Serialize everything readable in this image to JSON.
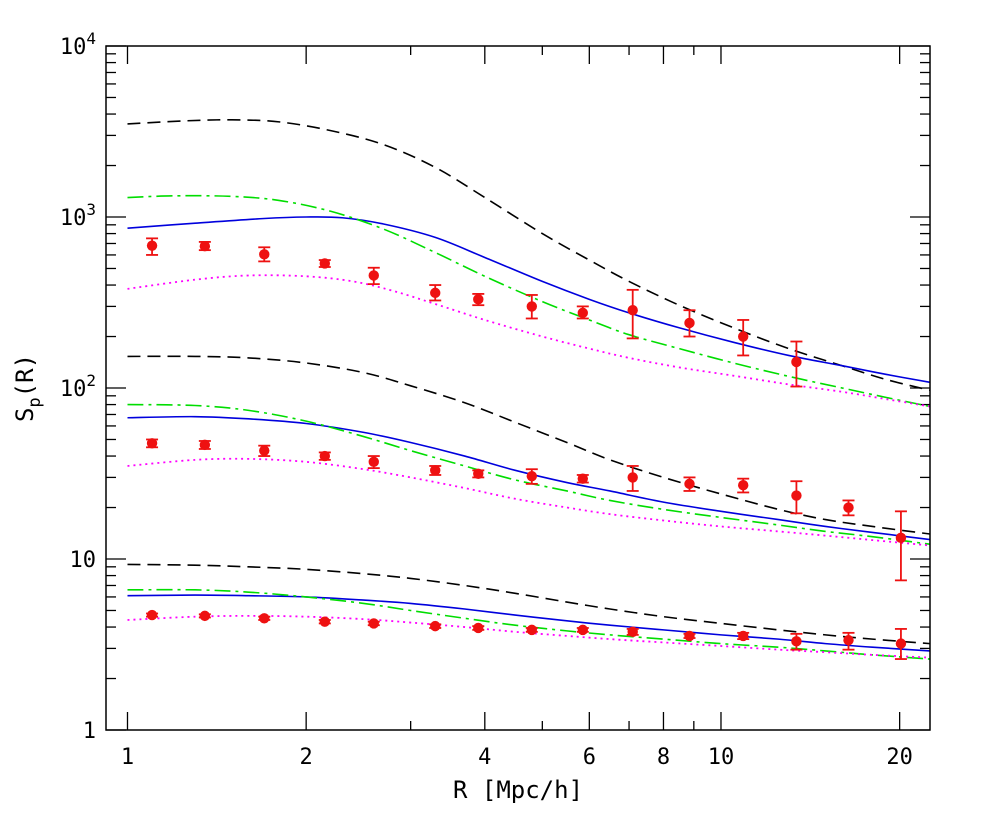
{
  "chart_data": {
    "type": "scatter",
    "xlabel": "R [Mpc/h]",
    "ylabel": "S",
    "ylabel_sub": "p",
    "ylabel_suffix": "(R)",
    "xscale": "log",
    "yscale": "log",
    "xlim": [
      0.92,
      22.5
    ],
    "ylim": [
      1,
      10000
    ],
    "x_ticks": [
      {
        "value": 1,
        "label": "1"
      },
      {
        "value": 2,
        "label": "2"
      },
      {
        "value": 4,
        "label": "4"
      },
      {
        "value": 6,
        "label": "6"
      },
      {
        "value": 8,
        "label": "8"
      },
      {
        "value": 10,
        "label": "10"
      },
      {
        "value": 20,
        "label": "20"
      }
    ],
    "y_ticks": [
      {
        "value": 1,
        "label": "1"
      },
      {
        "value": 10,
        "label": "10"
      },
      {
        "value": 100,
        "label": "10",
        "sup": "2"
      },
      {
        "value": 1000,
        "label": "10",
        "sup": "3"
      },
      {
        "value": 10000,
        "label": "10",
        "sup": "4"
      }
    ],
    "colors": {
      "points": "#ee1111",
      "dashed": "#000000",
      "solid": "#0000dd",
      "dashdot": "#00dd00",
      "dotted": "#ff00ff"
    },
    "model_curves": [
      {
        "group": "upper",
        "style": "dashed",
        "color": "#000000",
        "x": [
          1.0,
          1.25,
          1.5,
          1.8,
          2.2,
          2.7,
          3.3,
          4.0,
          5.0,
          6.0,
          7.0,
          8.5,
          10.5,
          13.0,
          16.0,
          19.0,
          22.5
        ],
        "y": [
          3500,
          3650,
          3700,
          3600,
          3200,
          2650,
          1950,
          1300,
          800,
          560,
          420,
          305,
          225,
          170,
          135,
          112,
          97
        ]
      },
      {
        "group": "upper",
        "style": "solid",
        "color": "#0000dd",
        "x": [
          1.0,
          1.3,
          1.7,
          2.0,
          2.3,
          2.7,
          3.3,
          4.0,
          5.0,
          6.0,
          7.0,
          8.5,
          10.5,
          13.0,
          16.0,
          19.0,
          22.5
        ],
        "y": [
          860,
          920,
          980,
          1000,
          990,
          910,
          760,
          580,
          420,
          330,
          275,
          225,
          185,
          155,
          135,
          120,
          108
        ]
      },
      {
        "group": "upper",
        "style": "dashdot",
        "color": "#00dd00",
        "x": [
          1.0,
          1.2,
          1.5,
          1.8,
          2.2,
          2.7,
          3.3,
          4.0,
          5.0,
          6.0,
          7.0,
          8.5,
          10.5,
          13.0,
          16.0,
          19.0,
          22.5
        ],
        "y": [
          1300,
          1330,
          1320,
          1250,
          1080,
          850,
          620,
          450,
          320,
          250,
          205,
          170,
          140,
          117,
          100,
          88,
          78
        ]
      },
      {
        "group": "upper",
        "style": "dotted",
        "color": "#ff00ff",
        "x": [
          1.0,
          1.3,
          1.6,
          2.0,
          2.4,
          2.8,
          3.3,
          4.0,
          5.0,
          6.0,
          7.0,
          8.5,
          10.5,
          13.0,
          16.0,
          19.0,
          22.5
        ],
        "y": [
          380,
          430,
          455,
          450,
          420,
          370,
          310,
          250,
          200,
          170,
          150,
          132,
          118,
          105,
          95,
          86,
          78
        ]
      },
      {
        "group": "middle",
        "style": "dashed",
        "color": "#000000",
        "x": [
          1.0,
          1.3,
          1.6,
          2.0,
          2.5,
          3.0,
          3.7,
          4.5,
          5.5,
          6.5,
          8.0,
          10.0,
          12.5,
          15.0,
          18.0,
          22.5
        ],
        "y": [
          153,
          153,
          150,
          140,
          123,
          103,
          82,
          63,
          48,
          38,
          30,
          24,
          19.5,
          17,
          15.5,
          14
        ]
      },
      {
        "group": "middle",
        "style": "solid",
        "color": "#0000dd",
        "x": [
          1.0,
          1.3,
          1.6,
          2.0,
          2.5,
          3.0,
          3.7,
          4.5,
          5.5,
          6.5,
          8.0,
          10.0,
          12.5,
          15.0,
          18.0,
          22.5
        ],
        "y": [
          67,
          68,
          66,
          62,
          55,
          48,
          40,
          33,
          28,
          25,
          21.5,
          19,
          17,
          15.5,
          14.3,
          13
        ]
      },
      {
        "group": "middle",
        "style": "dashdot",
        "color": "#00dd00",
        "x": [
          1.0,
          1.3,
          1.6,
          2.0,
          2.5,
          3.0,
          3.7,
          4.5,
          5.5,
          6.5,
          8.0,
          10.0,
          12.5,
          15.0,
          18.0,
          22.5
        ],
        "y": [
          80,
          79,
          74,
          64,
          52,
          43,
          35,
          29,
          25,
          22,
          19.5,
          17.5,
          15.8,
          14.5,
          13.5,
          12.2
        ]
      },
      {
        "group": "middle",
        "style": "dotted",
        "color": "#ff00ff",
        "x": [
          1.0,
          1.3,
          1.6,
          2.0,
          2.5,
          3.0,
          3.7,
          4.5,
          5.5,
          6.5,
          8.0,
          10.0,
          12.5,
          15.0,
          18.0,
          22.5
        ],
        "y": [
          35,
          38,
          38.5,
          37,
          33.5,
          30,
          26,
          22.5,
          20,
          18.3,
          16.8,
          15.5,
          14.5,
          13.7,
          12.9,
          12
        ]
      },
      {
        "group": "lower",
        "style": "dashed",
        "color": "#000000",
        "x": [
          1.0,
          1.3,
          1.6,
          2.0,
          2.5,
          3.0,
          3.7,
          4.5,
          5.5,
          6.5,
          8.0,
          10.0,
          12.5,
          15.0,
          18.0,
          22.5
        ],
        "y": [
          9.3,
          9.2,
          9.0,
          8.7,
          8.2,
          7.7,
          7.0,
          6.3,
          5.6,
          5.1,
          4.6,
          4.2,
          3.85,
          3.6,
          3.4,
          3.2
        ]
      },
      {
        "group": "lower",
        "style": "solid",
        "color": "#0000dd",
        "x": [
          1.0,
          1.3,
          1.6,
          2.0,
          2.5,
          3.0,
          3.7,
          4.5,
          5.5,
          6.5,
          8.0,
          10.0,
          12.5,
          15.0,
          18.0,
          22.5
        ],
        "y": [
          6.1,
          6.15,
          6.1,
          6.0,
          5.75,
          5.5,
          5.1,
          4.7,
          4.35,
          4.1,
          3.85,
          3.6,
          3.4,
          3.2,
          3.05,
          2.9
        ]
      },
      {
        "group": "lower",
        "style": "dashdot",
        "color": "#00dd00",
        "x": [
          1.0,
          1.3,
          1.6,
          2.0,
          2.5,
          3.0,
          3.7,
          4.5,
          5.5,
          6.5,
          8.0,
          10.0,
          12.5,
          15.0,
          18.0,
          22.5
        ],
        "y": [
          6.6,
          6.6,
          6.4,
          6.0,
          5.5,
          5.0,
          4.5,
          4.1,
          3.8,
          3.6,
          3.4,
          3.2,
          3.05,
          2.9,
          2.75,
          2.6
        ]
      },
      {
        "group": "lower",
        "style": "dotted",
        "color": "#ff00ff",
        "x": [
          1.0,
          1.3,
          1.6,
          2.0,
          2.5,
          3.0,
          3.7,
          4.5,
          5.5,
          6.5,
          8.0,
          10.0,
          12.5,
          15.0,
          18.0,
          22.5
        ],
        "y": [
          4.4,
          4.6,
          4.65,
          4.6,
          4.45,
          4.25,
          4.0,
          3.75,
          3.55,
          3.4,
          3.25,
          3.1,
          2.95,
          2.85,
          2.75,
          2.65
        ]
      }
    ],
    "data_points": [
      {
        "group": "upper",
        "x": [
          1.1,
          1.35,
          1.7,
          2.15,
          2.6,
          3.3,
          3.9,
          4.8,
          5.85,
          7.1,
          8.85,
          10.9,
          13.4
        ],
        "y": [
          680,
          675,
          605,
          535,
          455,
          360,
          330,
          300,
          275,
          285,
          240,
          200,
          142
        ],
        "err_low": [
          80,
          35,
          55,
          25,
          50,
          35,
          25,
          45,
          20,
          90,
          40,
          45,
          40
        ],
        "err_high": [
          70,
          40,
          60,
          25,
          50,
          40,
          25,
          50,
          25,
          90,
          45,
          50,
          45
        ]
      },
      {
        "group": "middle",
        "x": [
          1.1,
          1.35,
          1.7,
          2.15,
          2.6,
          3.3,
          3.9,
          4.8,
          5.85,
          7.1,
          8.85,
          10.9,
          13.4,
          16.4,
          20.1
        ],
        "y": [
          47.5,
          46.5,
          43,
          40,
          37,
          33,
          31.5,
          30.5,
          29.5,
          30,
          27.5,
          27,
          23.5,
          20,
          13.3
        ],
        "err_low": [
          2.5,
          2.5,
          3,
          2,
          3,
          2,
          1.5,
          3,
          1.5,
          5,
          2.5,
          2.5,
          5,
          2,
          5.8
        ],
        "err_high": [
          2.5,
          2.5,
          3,
          2,
          3,
          2,
          1.5,
          3,
          1.5,
          5,
          2.5,
          2.5,
          5,
          2,
          5.7
        ]
      },
      {
        "group": "lower",
        "x": [
          1.1,
          1.35,
          1.7,
          2.15,
          2.6,
          3.3,
          3.9,
          4.8,
          5.85,
          7.1,
          8.85,
          10.9,
          13.4,
          16.4,
          20.1
        ],
        "y": [
          4.7,
          4.65,
          4.5,
          4.3,
          4.2,
          4.05,
          3.95,
          3.85,
          3.85,
          3.75,
          3.55,
          3.55,
          3.3,
          3.35,
          3.2
        ],
        "err_low": [
          0.1,
          0.1,
          0.1,
          0.1,
          0.1,
          0.1,
          0.1,
          0.1,
          0.1,
          0.15,
          0.1,
          0.15,
          0.35,
          0.4,
          0.6
        ],
        "err_high": [
          0.1,
          0.1,
          0.1,
          0.1,
          0.1,
          0.1,
          0.1,
          0.1,
          0.1,
          0.15,
          0.1,
          0.15,
          0.35,
          0.35,
          0.7
        ]
      }
    ]
  }
}
